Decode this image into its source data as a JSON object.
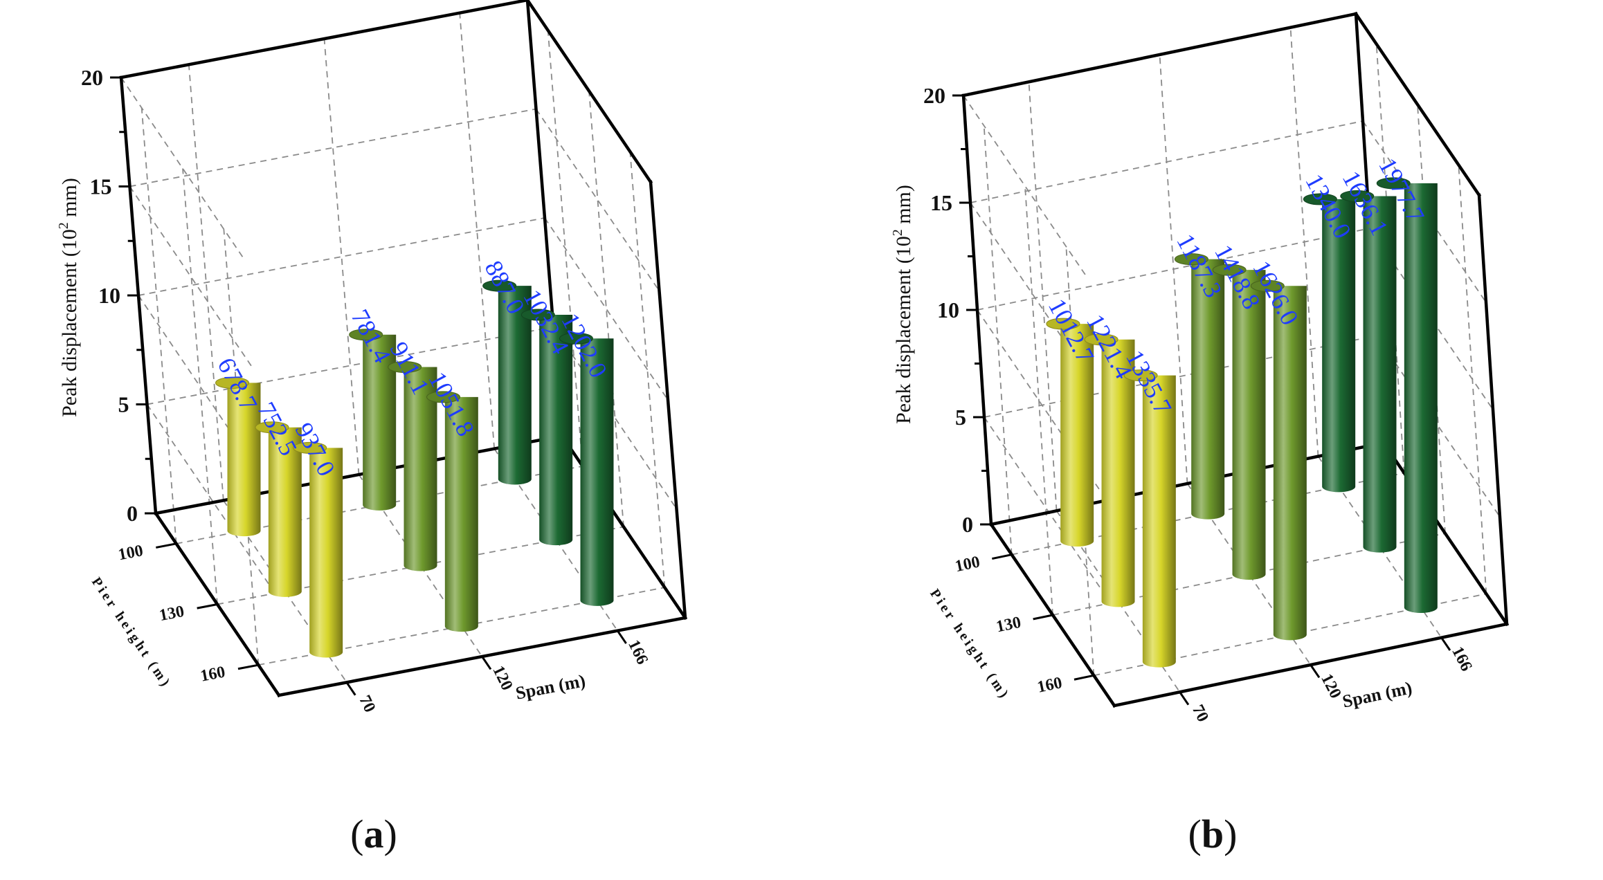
{
  "chart_data": [
    {
      "type": "bar3d",
      "panel_label": "(a)",
      "zlabel": "Peak displacement (10² mm)",
      "zlim": [
        0,
        20
      ],
      "z_ticks": [
        "0",
        "5",
        "10",
        "15",
        "20"
      ],
      "xlabel": "Span  (m)",
      "x_categories": [
        "70",
        "120",
        "166"
      ],
      "ylabel": "Pier height (m)",
      "y_categories": [
        "100",
        "130",
        "160"
      ],
      "series": [
        {
          "name": "70",
          "color": "#d7d62a",
          "values": [
            678.7,
            752.5,
            937.0
          ],
          "labels": [
            "678.7",
            "752.5",
            "937.0"
          ]
        },
        {
          "name": "120",
          "color": "#6f9a2d",
          "values": [
            781.4,
            911.1,
            1051.8
          ],
          "labels": [
            "781.4",
            "911.1",
            "1051.8"
          ]
        },
        {
          "name": "166",
          "color": "#1c6a33",
          "values": [
            887.0,
            1032.4,
            1202.0
          ],
          "labels": [
            "887.0",
            "1032.4",
            "1202.0"
          ]
        }
      ]
    },
    {
      "type": "bar3d",
      "panel_label": "(b)",
      "zlabel": "Peak displacement (10² mm)",
      "zlim": [
        0,
        20
      ],
      "z_ticks": [
        "0",
        "5",
        "10",
        "15",
        "20"
      ],
      "xlabel": "Span  (m)",
      "x_categories": [
        "70",
        "120",
        "166"
      ],
      "ylabel": "Pier height (m)",
      "y_categories": [
        "100",
        "130",
        "160"
      ],
      "series": [
        {
          "name": "70",
          "color": "#d7d62a",
          "values": [
            1012.7,
            1221.4,
            1335.7
          ],
          "labels": [
            "1012.7",
            "1221.4",
            "1335.7"
          ]
        },
        {
          "name": "120",
          "color": "#6f9a2d",
          "values": [
            1187.3,
            1418.8,
            1626.0
          ],
          "labels": [
            "1187.3",
            "1418.8",
            "1626.0"
          ]
        },
        {
          "name": "166",
          "color": "#1c6a33",
          "values": [
            1340.0,
            1636.1,
            1977.7
          ],
          "labels": [
            "1340.0",
            "1636.1",
            "1977.7"
          ]
        }
      ]
    }
  ]
}
